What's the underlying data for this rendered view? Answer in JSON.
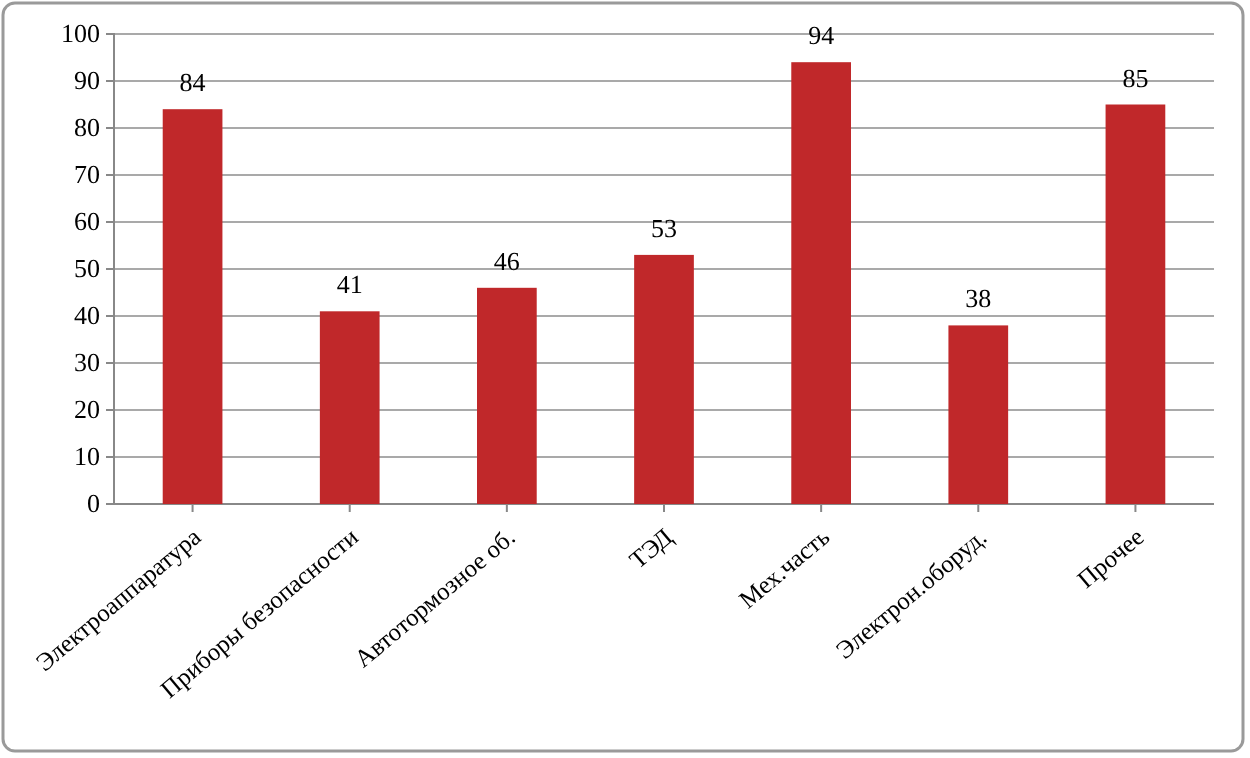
{
  "chart_data": {
    "type": "bar",
    "categories": [
      "Электроаппаратура",
      "Приборы безопасности",
      "Автотормозное об.",
      "ТЭД",
      "Мех.часть",
      "Электрон.оборуд.",
      "Прочее"
    ],
    "values": [
      84,
      41,
      46,
      53,
      94,
      38,
      85
    ],
    "color": "#c0282a",
    "ylim": [
      0,
      100
    ],
    "yticks": [
      0,
      10,
      20,
      30,
      40,
      50,
      60,
      70,
      80,
      90,
      100
    ],
    "grid": "y",
    "data_labels": true
  }
}
